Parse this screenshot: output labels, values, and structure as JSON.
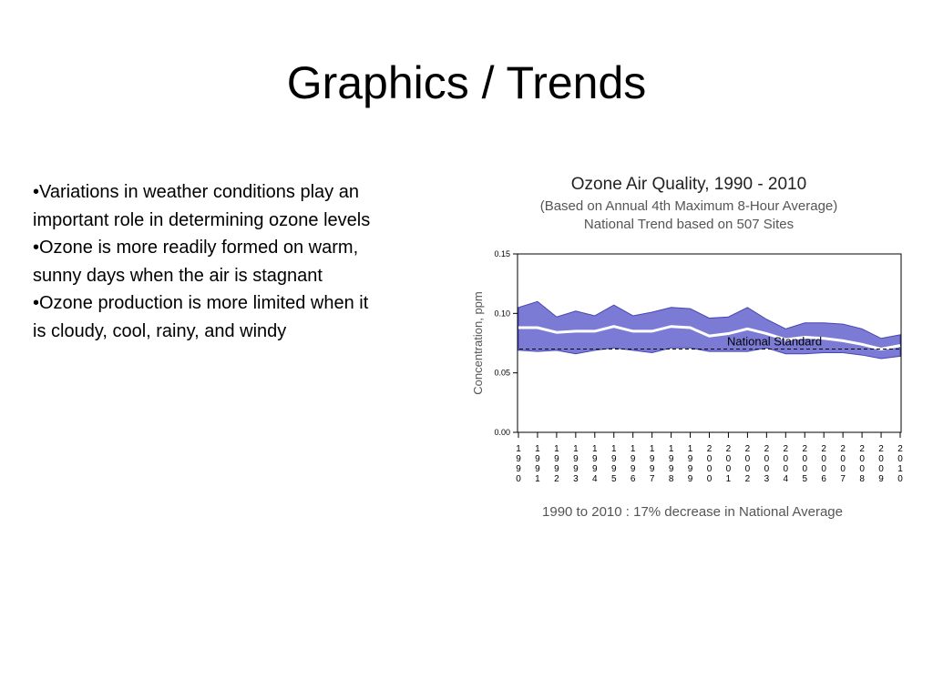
{
  "slide": {
    "title": "Graphics / Trends",
    "bullets": [
      "•Variations in weather conditions play an important role in determining ozone levels",
      "•Ozone is more readily formed on warm, sunny days when the air is stagnant",
      "•Ozone production is more limited when it is cloudy, cool, rainy, and windy"
    ]
  },
  "chart_data": {
    "type": "area",
    "title": "Ozone Air Quality, 1990 - 2010",
    "subtitle": "(Based on Annual 4th Maximum 8-Hour Average)",
    "subtitle2": "National Trend based on 507 Sites",
    "ylabel": "Concentration, ppm",
    "xlabel": "",
    "ylim": [
      0.0,
      0.15
    ],
    "yticks": [
      "0.00",
      "0.05",
      "0.10",
      "0.15"
    ],
    "x": [
      "1990",
      "1991",
      "1992",
      "1993",
      "1994",
      "1995",
      "1996",
      "1997",
      "1998",
      "1999",
      "2000",
      "2001",
      "2002",
      "2003",
      "2004",
      "2005",
      "2006",
      "2007",
      "2008",
      "2009",
      "2010"
    ],
    "series": [
      {
        "role": "upper band",
        "values": [
          0.105,
          0.11,
          0.097,
          0.102,
          0.098,
          0.107,
          0.098,
          0.101,
          0.105,
          0.104,
          0.096,
          0.097,
          0.105,
          0.095,
          0.087,
          0.092,
          0.092,
          0.091,
          0.087,
          0.079,
          0.082
        ]
      },
      {
        "role": "national average",
        "values": [
          0.088,
          0.088,
          0.084,
          0.085,
          0.085,
          0.089,
          0.085,
          0.085,
          0.089,
          0.088,
          0.081,
          0.083,
          0.087,
          0.083,
          0.078,
          0.08,
          0.079,
          0.077,
          0.074,
          0.07,
          0.073
        ]
      },
      {
        "role": "lower band",
        "values": [
          0.069,
          0.068,
          0.069,
          0.066,
          0.069,
          0.071,
          0.069,
          0.067,
          0.071,
          0.071,
          0.068,
          0.068,
          0.068,
          0.071,
          0.066,
          0.066,
          0.067,
          0.067,
          0.065,
          0.062,
          0.064
        ]
      }
    ],
    "reference_line": {
      "label": "National Standard",
      "value": 0.07
    },
    "footnote": "1990 to 2010 :  17% decrease in National Average",
    "colors": {
      "band": "#7b7bd6",
      "band_stroke": "#4646b4",
      "average": "#ffffff",
      "standard": "#000000"
    },
    "grid": false
  }
}
